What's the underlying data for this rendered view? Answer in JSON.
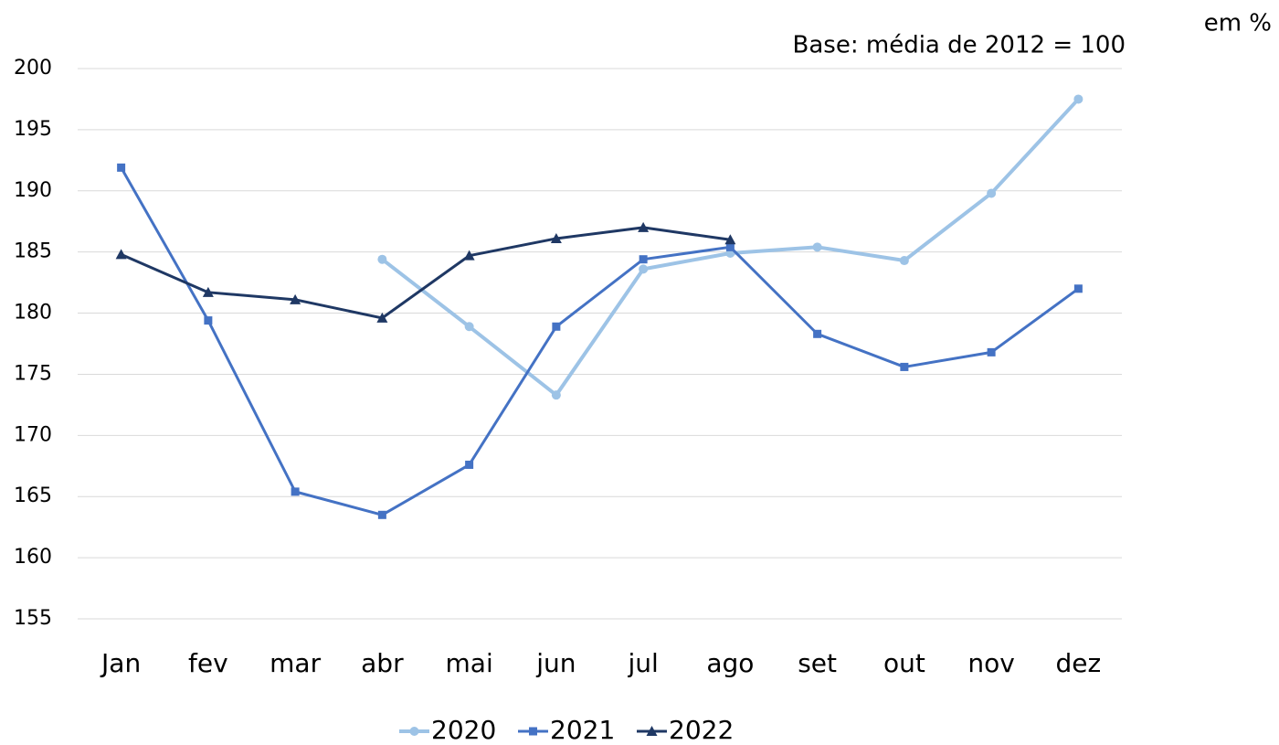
{
  "chart_data": {
    "type": "line",
    "unit_note": "em %",
    "subtitle": "Base: média de 2012 = 100",
    "categories": [
      "Jan",
      "fev",
      "mar",
      "abr",
      "mai",
      "jun",
      "jul",
      "ago",
      "set",
      "out",
      "nov",
      "dez"
    ],
    "series": [
      {
        "name": "2020",
        "color": "#9dc3e6",
        "marker": "circle",
        "values": [
          null,
          null,
          null,
          184.4,
          178.9,
          173.3,
          183.6,
          184.9,
          185.4,
          184.3,
          189.8,
          197.5
        ]
      },
      {
        "name": "2021",
        "color": "#4472c4",
        "marker": "square",
        "values": [
          191.9,
          179.4,
          165.4,
          163.5,
          167.6,
          178.9,
          184.4,
          185.4,
          178.3,
          175.6,
          176.8,
          182.0
        ]
      },
      {
        "name": "2022",
        "color": "#1f3864",
        "marker": "triangle",
        "values": [
          184.8,
          181.7,
          181.1,
          179.6,
          184.7,
          186.1,
          187.0,
          186.0,
          null,
          null,
          null,
          null
        ]
      }
    ],
    "ylim": [
      155,
      200
    ],
    "yticks": [
      155,
      160,
      165,
      170,
      175,
      180,
      185,
      190,
      195,
      200
    ],
    "grid": true,
    "legend": "bottom"
  }
}
